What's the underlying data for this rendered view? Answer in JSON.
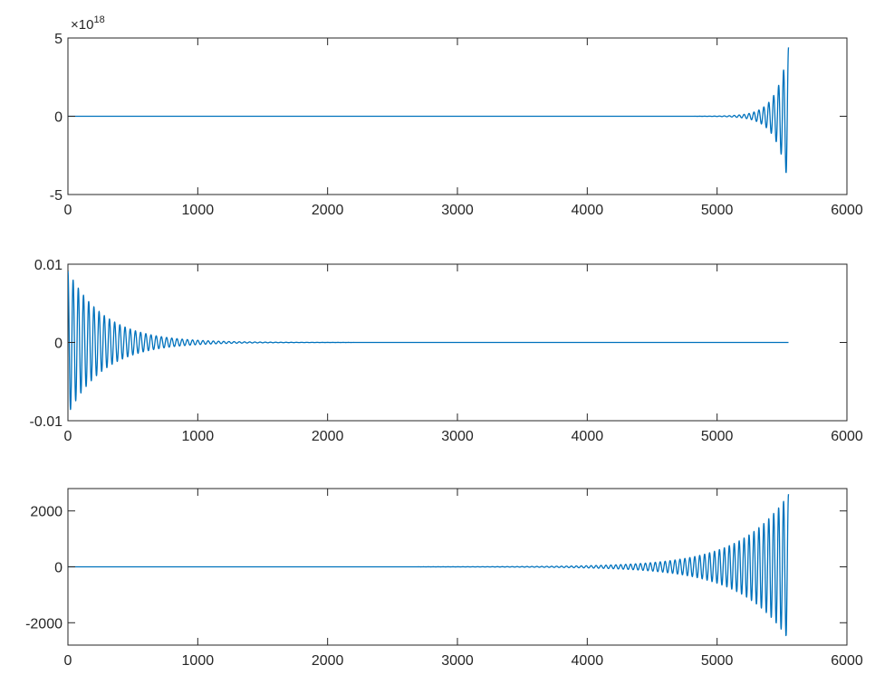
{
  "chart_data": [
    {
      "type": "line",
      "title": "",
      "xlabel": "",
      "ylabel": "",
      "xlim": [
        0,
        6000
      ],
      "ylim": [
        -5e+18,
        5e+18
      ],
      "x_ticks": [
        0,
        1000,
        2000,
        3000,
        4000,
        5000,
        6000
      ],
      "x_tick_labels": [
        "0",
        "1000",
        "2000",
        "3000",
        "4000",
        "5000",
        "6000"
      ],
      "y_ticks": [
        -5e+18,
        0,
        5e+18
      ],
      "y_tick_labels": [
        "-5",
        "0",
        "5"
      ],
      "y_exponent": {
        "base": "×10",
        "power": "18"
      },
      "grid": false,
      "color": "#0072bd",
      "series": [
        {
          "shape": "growing oscillation",
          "x_start": 0,
          "x_end": 5550,
          "visible_from": 4600,
          "amplitude_at_end": 4.4e+18,
          "growth_per_unit_x": 0.0105,
          "period": 38
        }
      ]
    },
    {
      "type": "line",
      "title": "",
      "xlabel": "",
      "ylabel": "",
      "xlim": [
        0,
        6000
      ],
      "ylim": [
        -0.01,
        0.01
      ],
      "x_ticks": [
        0,
        1000,
        2000,
        3000,
        4000,
        5000,
        6000
      ],
      "x_tick_labels": [
        "0",
        "1000",
        "2000",
        "3000",
        "4000",
        "5000",
        "6000"
      ],
      "y_ticks": [
        -0.01,
        0,
        0.01
      ],
      "y_tick_labels": [
        "-0.01",
        "0",
        "0.01"
      ],
      "grid": false,
      "color": "#0072bd",
      "series": [
        {
          "shape": "decaying oscillation",
          "x_start": 0,
          "x_end": 5550,
          "amplitude_at_start": 0.0092,
          "decay_per_unit_x": 0.0035,
          "period": 40
        }
      ]
    },
    {
      "type": "line",
      "title": "",
      "xlabel": "",
      "ylabel": "",
      "xlim": [
        0,
        6000
      ],
      "ylim": [
        -2800,
        2800
      ],
      "x_ticks": [
        0,
        1000,
        2000,
        3000,
        4000,
        5000,
        6000
      ],
      "x_tick_labels": [
        "0",
        "1000",
        "2000",
        "3000",
        "4000",
        "5000",
        "6000"
      ],
      "y_ticks": [
        -2000,
        0,
        2000
      ],
      "y_tick_labels": [
        "-2000",
        "0",
        "2000"
      ],
      "grid": false,
      "color": "#0072bd",
      "series": [
        {
          "shape": "growing oscillation",
          "x_start": 0,
          "x_end": 5550,
          "visible_from": 2600,
          "amplitude_at_end": 2600,
          "growth_per_unit_x": 0.0027,
          "period": 38
        }
      ]
    }
  ]
}
